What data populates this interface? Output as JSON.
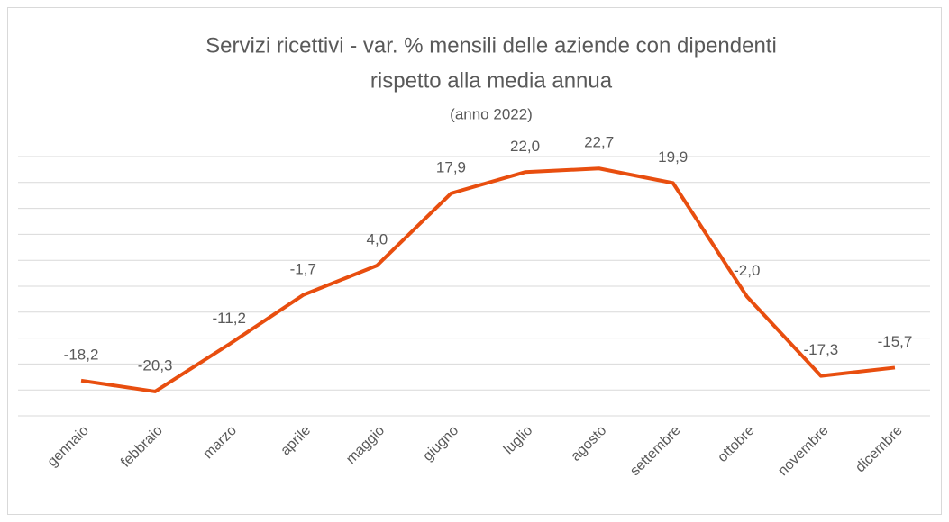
{
  "chart_data": {
    "type": "line",
    "title": [
      "Servizi ricettivi - var. % mensili delle aziende con dipendenti",
      "rispetto alla media annua"
    ],
    "subtitle": "(anno 2022)",
    "categories": [
      "gennaio",
      "febbraio",
      "marzo",
      "aprile",
      "maggio",
      "giugno",
      "luglio",
      "agosto",
      "settembre",
      "ottobre",
      "novembre",
      "dicembre"
    ],
    "series": [
      {
        "color": "#e84e0f",
        "values": [
          -18.2,
          -20.3,
          -11.2,
          -1.7,
          4.0,
          17.9,
          22.0,
          22.7,
          19.9,
          -2.0,
          -17.3,
          -15.7
        ],
        "value_labels": [
          "-18,2",
          "-20,3",
          "-11,2",
          "-1,7",
          "4,0",
          "17,9",
          "22,0",
          "22,7",
          "19,9",
          "-2,0",
          "-17,3",
          "-15,7"
        ]
      }
    ],
    "ylim": [
      -25,
      25
    ],
    "yticks": [
      -25,
      -20,
      -15,
      -10,
      -5,
      0,
      5,
      10,
      15,
      20,
      25
    ],
    "grid": true
  }
}
